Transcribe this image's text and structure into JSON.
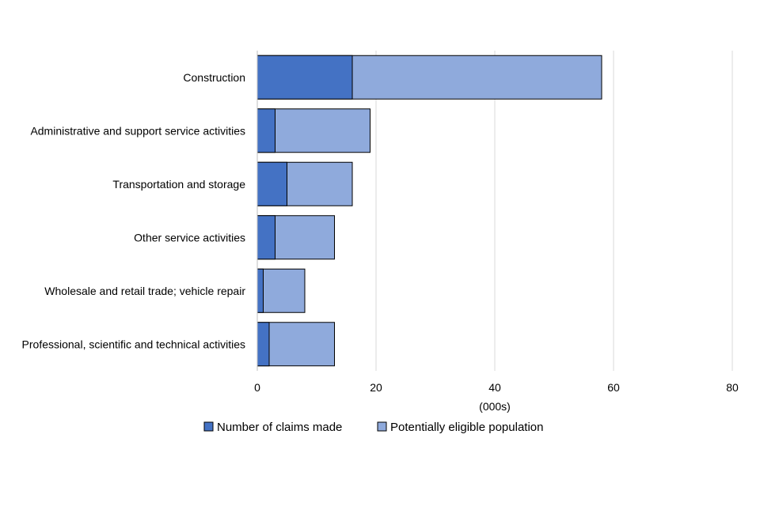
{
  "chart_data": {
    "type": "bar",
    "orientation": "horizontal",
    "layout": "overlapping",
    "categories": [
      "Construction",
      "Administrative and support service activities",
      "Transportation and storage",
      "Other service activities",
      "Wholesale and retail trade; vehicle repair",
      "Professional, scientific and technical activities"
    ],
    "series": [
      {
        "name": "Number of claims made",
        "color": "#4472C4",
        "values": [
          16,
          3,
          5,
          3,
          1,
          2
        ]
      },
      {
        "name": "Potentially eligible population",
        "color": "#8FAADC",
        "values": [
          58,
          19,
          16,
          13,
          8,
          13
        ]
      }
    ],
    "xlim": [
      0,
      80
    ],
    "xticks": [
      0,
      20,
      40,
      60,
      80
    ],
    "xlabel": "(000s)",
    "ylabel": "",
    "title": "",
    "grid": true,
    "legend_position": "bottom"
  }
}
